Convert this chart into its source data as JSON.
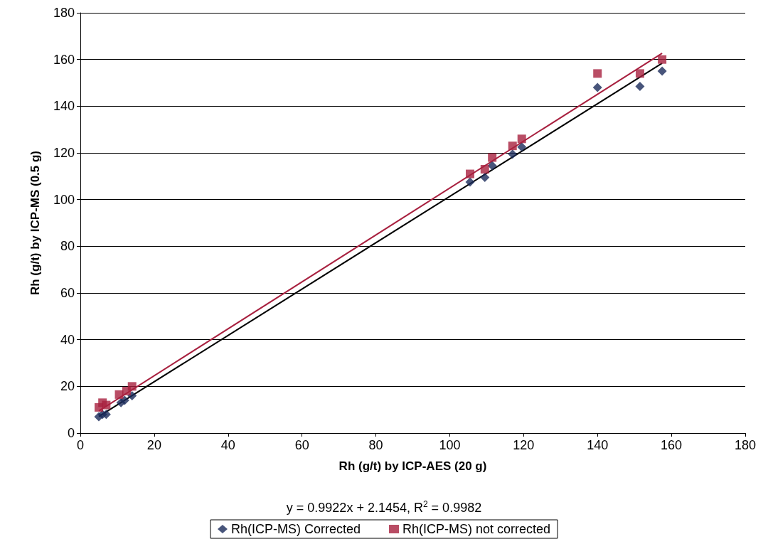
{
  "chart_data": {
    "type": "scatter",
    "xlabel": "Rh (g/t) by ICP-AES (20 g)",
    "ylabel": "Rh (g/t) by ICP-MS (0.5 g)",
    "xlim": [
      0,
      180
    ],
    "xticks": [
      0,
      20,
      40,
      60,
      80,
      100,
      120,
      140,
      160,
      180
    ],
    "ylim": [
      0,
      180
    ],
    "yticks": [
      0,
      20,
      40,
      60,
      80,
      100,
      120,
      140,
      160,
      180
    ],
    "grid": "y",
    "legend": "bottom",
    "annotations": [
      "y = 0.9922x + 2.1454, R$^{2}$ = 0.9982"
    ],
    "series": [
      {
        "name": "Rh(ICP-MS) Corrected",
        "color": "#1a2a5a",
        "marker": "diamond",
        "x": [
          5,
          6,
          7,
          11,
          12,
          14,
          105.5,
          109.5,
          111.5,
          117,
          119.5,
          140,
          151.5,
          157.5
        ],
        "values": [
          7,
          8,
          8,
          13,
          14,
          16,
          107.5,
          109.5,
          114.5,
          119.5,
          122.5,
          148,
          148.5,
          155
        ]
      },
      {
        "name": "Rh(ICP-MS) not corrected",
        "color": "#a8203f",
        "marker": "square",
        "x": [
          5,
          6,
          7,
          10.5,
          12.5,
          14,
          105.5,
          109.5,
          111.5,
          117,
          119.5,
          140,
          151.5,
          157.5
        ],
        "values": [
          11,
          13,
          12,
          16.5,
          18,
          20,
          111,
          113,
          118,
          123,
          126,
          154,
          154,
          160
        ]
      },
      {
        "type": "line",
        "color": "#000000",
        "marker": "none",
        "x": [
          5,
          157.5
        ],
        "values": [
          7.1,
          158.4
        ]
      },
      {
        "type": "line",
        "color": "#a8203f",
        "marker": "none",
        "x": [
          5,
          157.5
        ],
        "values": [
          9.5,
          162.7
        ]
      }
    ]
  }
}
